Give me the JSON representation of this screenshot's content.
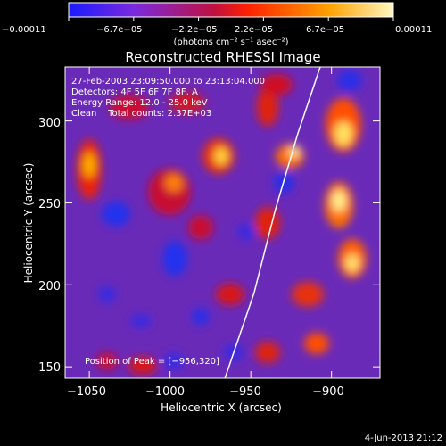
{
  "chart_data": {
    "type": "heatmap",
    "title": "Reconstructed RHESSI Image",
    "xlabel": "Heliocentric X (arcsec)",
    "ylabel": "Heliocentric Y (arcsec)",
    "xlim": [
      -1065,
      -870
    ],
    "ylim": [
      143,
      333
    ],
    "x_ticks": [
      -1050,
      -1000,
      -950,
      -900
    ],
    "y_ticks": [
      150,
      200,
      250,
      300
    ],
    "x_tick_labels": [
      "−1050",
      "−1000",
      "−950",
      "−900"
    ],
    "y_tick_labels": [
      "150",
      "200",
      "250",
      "300"
    ],
    "colorbar": {
      "min": -0.00011,
      "max": 0.00011,
      "tick_labels": [
        "−0.00011",
        "−6.7e−05",
        "−2.2e−05",
        "2.2e−05",
        "6.7e−05",
        "0.00011"
      ],
      "unit_label": "(photons cm⁻² s⁻¹ asec⁻²)",
      "colors": [
        "#1a1aff",
        "#7a2adf",
        "#c01040",
        "#ff2000",
        "#ffa000",
        "#fff8c0"
      ]
    },
    "annotations": [
      "27-Feb-2003 23:09:50.000 to 23:13:04.000",
      "Detectors: 4F 5F 6F 7F 8F, A",
      "Energy Range: 12.0 - 25.0 keV",
      "Clean    Total counts: 2.37E+03"
    ],
    "peak_label": "Position of Peak = [−956,320]",
    "peak": [
      -956,
      320
    ],
    "limb": [
      [
        -1050,
        100
      ],
      [
        -1000,
        100
      ],
      [
        -966,
        143
      ],
      [
        -948,
        195
      ],
      [
        -935,
        245
      ],
      [
        -921,
        292
      ],
      [
        -907,
        333
      ]
    ],
    "grid": false
  },
  "footer": {
    "timestamp": "4-Jun-2013 21:12"
  }
}
